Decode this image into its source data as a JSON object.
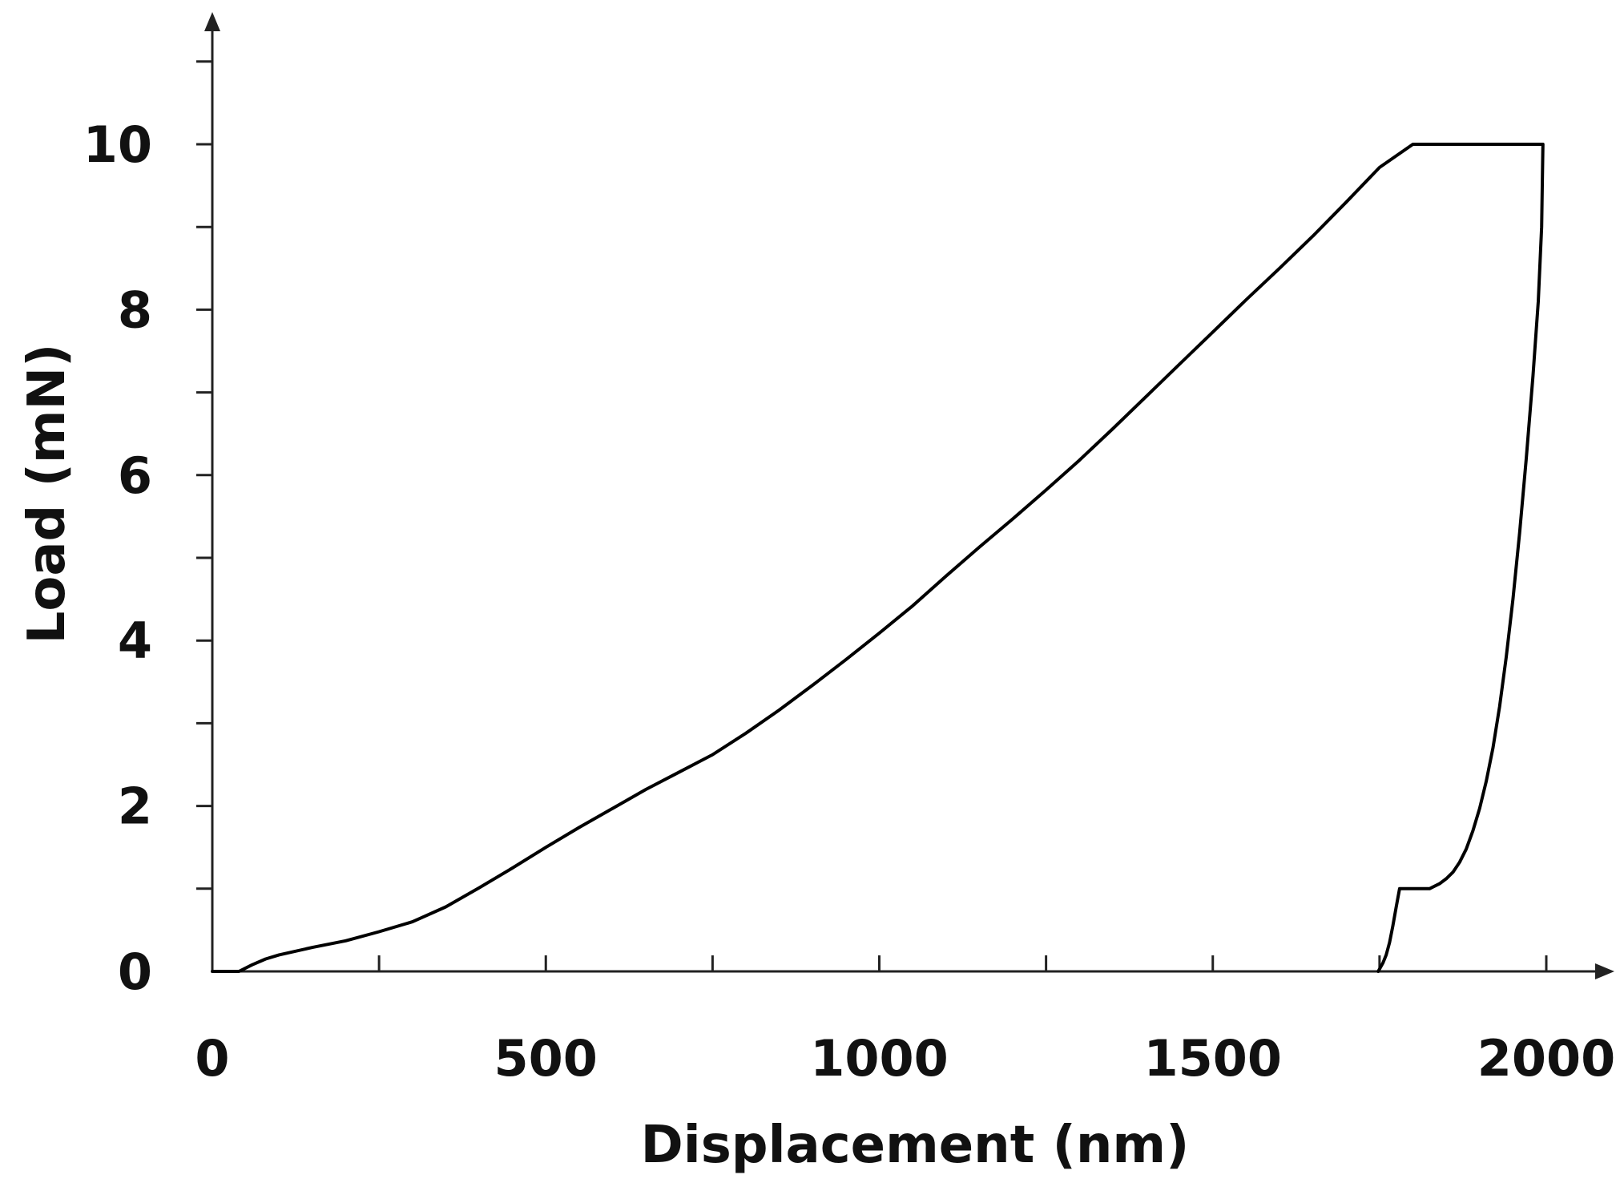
{
  "chart_data": {
    "type": "line",
    "title": "",
    "xlabel": "Displacement (nm)",
    "ylabel": "Load (mN)",
    "xlim": [
      0,
      2100
    ],
    "ylim": [
      0,
      11.5
    ],
    "x_ticks": [
      0,
      500,
      1000,
      1500,
      2000
    ],
    "x_tick_labels": [
      "0",
      "500",
      "1000",
      "1500",
      "2000"
    ],
    "x_minor_ticks": [
      250,
      750,
      1250,
      1750
    ],
    "y_ticks": [
      0,
      2,
      4,
      6,
      8,
      10
    ],
    "y_tick_labels": [
      "0",
      "2",
      "4",
      "6",
      "8",
      "10"
    ],
    "y_minor_ticks": [
      1,
      3,
      5,
      7,
      9,
      11
    ],
    "grid": false,
    "legend": "none",
    "line_color": "#000000",
    "series": [
      {
        "x": [
          0,
          40,
          60,
          80,
          100,
          150,
          200,
          250,
          300,
          350,
          400,
          450,
          500,
          550,
          600,
          650,
          700,
          750,
          800,
          850,
          900,
          950,
          1000,
          1050,
          1100,
          1150,
          1200,
          1250,
          1300,
          1350,
          1400,
          1450,
          1500,
          1550,
          1600,
          1650,
          1700,
          1750,
          1800,
          1835,
          1900,
          1950,
          1995,
          1993,
          1988,
          1980,
          1970,
          1960,
          1950,
          1940,
          1930,
          1920,
          1910,
          1900,
          1890,
          1880,
          1870,
          1860,
          1850,
          1840,
          1830,
          1825,
          1780,
          1775,
          1770,
          1765,
          1760,
          1755,
          1748
        ],
        "y": [
          0,
          0,
          0.08,
          0.15,
          0.2,
          0.29,
          0.37,
          0.48,
          0.6,
          0.78,
          1.01,
          1.25,
          1.5,
          1.74,
          1.97,
          2.2,
          2.41,
          2.62,
          2.88,
          3.16,
          3.46,
          3.77,
          4.09,
          4.42,
          4.78,
          5.13,
          5.47,
          5.82,
          6.18,
          6.56,
          6.95,
          7.34,
          7.73,
          8.12,
          8.5,
          8.89,
          9.3,
          9.72,
          10.0,
          10.0,
          10.0,
          10.0,
          10.0,
          9.0,
          8.1,
          7.2,
          6.2,
          5.3,
          4.5,
          3.8,
          3.2,
          2.7,
          2.3,
          1.97,
          1.7,
          1.48,
          1.32,
          1.2,
          1.12,
          1.06,
          1.02,
          1.0,
          1.0,
          0.78,
          0.55,
          0.35,
          0.2,
          0.1,
          0
        ]
      }
    ]
  }
}
